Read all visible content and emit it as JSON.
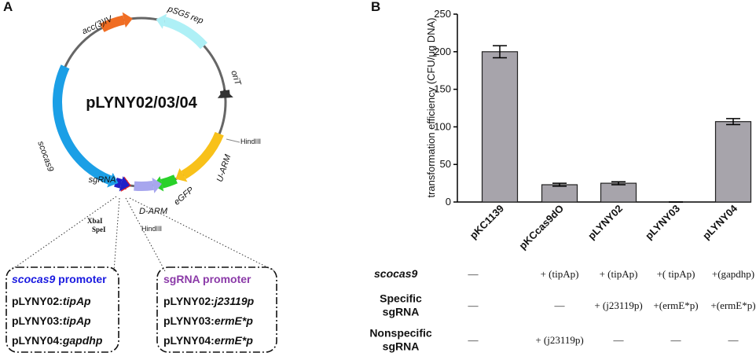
{
  "panel_a": {
    "label": "A",
    "plasmid": {
      "name": "pLYNY02/03/04",
      "features": [
        "acc(3)IV",
        "pSG5 rep",
        "oriT",
        "U-ARM",
        "eGFP",
        "D-ARM",
        "sgRNA",
        "scocas9"
      ],
      "sites": [
        "HindIII",
        "XbaI",
        "SpeI",
        "HindIII"
      ]
    },
    "promoter_boxes": [
      {
        "title": [
          "scocas9",
          " promoter"
        ],
        "lines": [
          [
            "pLYNY02:",
            "tipAp"
          ],
          [
            "pLYNY03:",
            "tipAp"
          ],
          [
            "pLYNY04:",
            "gapdhp"
          ]
        ]
      },
      {
        "title": [
          "sgRNA promoter"
        ],
        "lines": [
          [
            "pLYNY02:",
            "j23119p"
          ],
          [
            "pLYNY03:",
            "ermE*p"
          ],
          [
            "pLYNY04:",
            "ermE*p"
          ]
        ]
      }
    ]
  },
  "chart_data": {
    "type": "bar",
    "panel_label": "B",
    "y_label": "transformation efficiency (CFU/μg DNA)",
    "categories": [
      "pKC1139",
      "pKCcas9dO",
      "pLYNY02",
      "pLYNY03",
      "pLYNY04"
    ],
    "values": [
      200,
      23,
      25,
      0,
      107
    ],
    "errors": [
      8,
      2,
      2,
      0,
      4
    ],
    "color": "#a7a4ab",
    "ylim": [
      0,
      250
    ],
    "yticks": [
      0,
      50,
      100,
      150,
      200,
      250
    ]
  },
  "table": {
    "row_headers": [
      [
        "scocas9"
      ],
      [
        "Specific",
        "sgRNA"
      ],
      [
        "Nonspecific",
        "sgRNA"
      ]
    ],
    "rows": [
      [
        "—",
        "+ (tipAp)",
        "+ (tipAp)",
        "+( tipAp)",
        "+(gapdhp)"
      ],
      [
        "—",
        "—",
        "+ (j23119p)",
        "+(ermE*p)",
        "+(ermE*p)"
      ],
      [
        "—",
        "+ (j23119p)",
        "—",
        "—",
        "—"
      ]
    ]
  }
}
